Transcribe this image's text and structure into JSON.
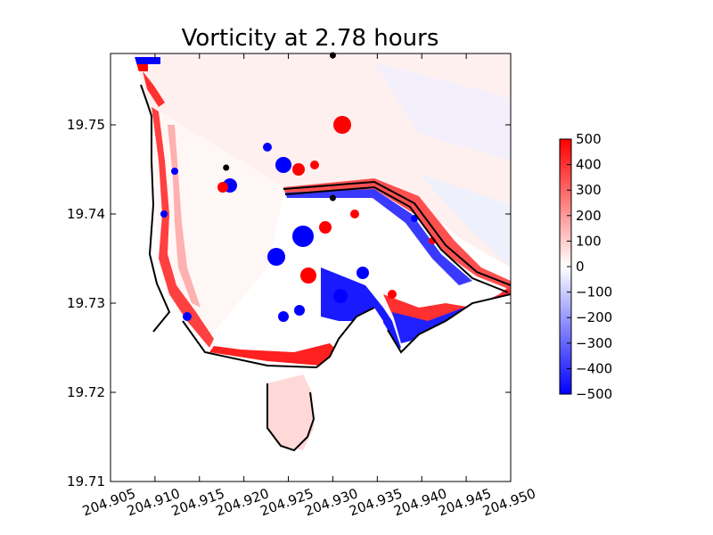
{
  "chart_data": {
    "type": "heatmap",
    "title": "Vorticity at 2.78 hours",
    "xlabel": "",
    "ylabel": "",
    "xlim": [
      204.905,
      204.95
    ],
    "ylim": [
      19.71,
      19.758
    ],
    "xticks": [
      "204.905",
      "204.910",
      "204.915",
      "204.920",
      "204.925",
      "204.930",
      "204.935",
      "204.940",
      "204.945",
      "204.950"
    ],
    "yticks": [
      "19.71",
      "19.72",
      "19.73",
      "19.74",
      "19.75"
    ],
    "xtick_values": [
      204.905,
      204.91,
      204.915,
      204.92,
      204.925,
      204.93,
      204.935,
      204.94,
      204.945,
      204.95
    ],
    "ytick_values": [
      19.71,
      19.72,
      19.73,
      19.74,
      19.75
    ],
    "colorbar": {
      "range": [
        -500,
        500
      ],
      "ticks": [
        "500",
        "400",
        "300",
        "200",
        "100",
        "0",
        "−100",
        "−200",
        "−300",
        "−400",
        "−500"
      ],
      "tick_values": [
        500,
        400,
        300,
        200,
        100,
        0,
        -100,
        -200,
        -300,
        -400,
        -500
      ],
      "colormap": "blue-white-red",
      "placement": "right"
    },
    "colors": {
      "positive": "#ff0000",
      "zero": "#ffffff",
      "negative": "#0000ff",
      "coastline": "#000000"
    },
    "markers": [
      {
        "x": 204.93,
        "y": 19.7578
      },
      {
        "x": 204.918,
        "y": 19.7452
      },
      {
        "x": 204.93,
        "y": 19.7418
      }
    ],
    "grid": false
  }
}
